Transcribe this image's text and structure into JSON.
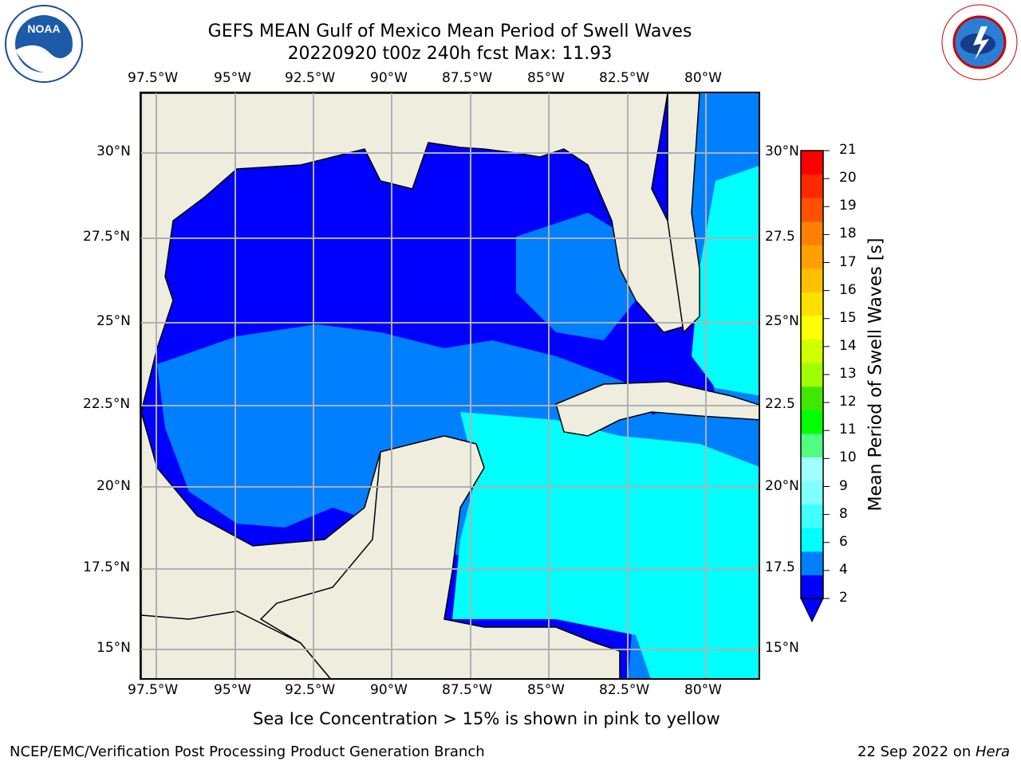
{
  "title_line1": "GEFS MEAN Gulf of Mexico Mean Period of Swell Waves",
  "title_line2": "20220920 t00z 240h fcst   Max: 11.93",
  "logos": {
    "left": "noaa-logo",
    "right": "nws-logo",
    "noaa_text": "NOAA",
    "nws_text": "NATIONAL WEATHER SERVICE"
  },
  "lon_ticks": [
    "97.5°W",
    "95°W",
    "92.5°W",
    "90°W",
    "87.5°W",
    "85°W",
    "82.5°W",
    "80°W"
  ],
  "lat_ticks_left": [
    "30°N",
    "27.5°N",
    "25°N",
    "22.5°N",
    "20°N",
    "17.5°N",
    "15°N"
  ],
  "lat_ticks_right": [
    "30°N",
    "27.5",
    "25°N",
    "22.5",
    "20°N",
    "17.5",
    "15°N"
  ],
  "colorbar": {
    "label": "Mean Period of Swell Waves [s]",
    "ticks": [
      "21",
      "20",
      "19",
      "18",
      "17",
      "16",
      "15",
      "14",
      "13",
      "12",
      "11",
      "10",
      "9",
      "8",
      "6",
      "4",
      "2"
    ],
    "colors": [
      "#0000ff",
      "#0080ff",
      "#00ffff",
      "#40ffff",
      "#80ffff",
      "#a0ffff",
      "#50ff80",
      "#00ff00",
      "#40e800",
      "#a0ff00",
      "#d0ff00",
      "#ffff00",
      "#ffe000",
      "#ffc000",
      "#ffa000",
      "#ff8000",
      "#ff5000",
      "#ff2800",
      "#ff0000"
    ]
  },
  "colors": {
    "land": "#efedde",
    "ocean_low": "#0000ff",
    "ocean_mid": "#0080ff",
    "ocean_high": "#00ffff",
    "green": "#00ee00"
  },
  "note": "Sea Ice Concentration > 15% is shown in pink to yellow",
  "footer_left": "NCEP/EMC/Verification Post Processing Product Generation Branch",
  "footer_right_date": "22 Sep 2022 on ",
  "footer_right_host": "Hera"
}
